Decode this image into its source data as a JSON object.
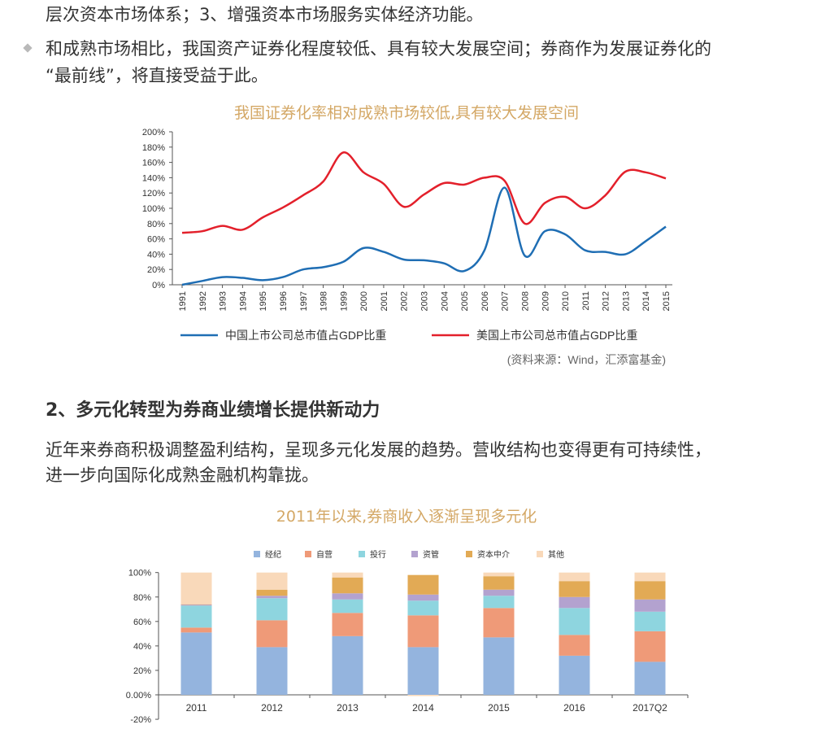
{
  "paragraphs": {
    "p1": "层次资本市场体系；3、增强资本市场服务实体经济功能。",
    "p2_line1": "和成熟市场相比，我国资产证券化程度较低、具有较大发展空间；券商作为发展证券化的",
    "p2_line2": "“最前线”，将直接受益于此。",
    "heading2": "2、多元化转型为券商业绩增长提供新动力",
    "p3_line1": "近年来券商积极调整盈利结构，呈现多元化发展的趋势。营收结构也变得更有可持续性，",
    "p3_line2": "进一步向国际化成熟金融机构靠拢。"
  },
  "chart_data": [
    {
      "type": "line",
      "title": "我国证券化率相对成熟市场较低,具有较大发展空间",
      "source": "(资料来源：Wind，汇添富基金)",
      "ylim": [
        0,
        200
      ],
      "yticks": [
        "0%",
        "20%",
        "40%",
        "60%",
        "80%",
        "100%",
        "120%",
        "140%",
        "160%",
        "180%",
        "200%"
      ],
      "x": [
        1991,
        1992,
        1993,
        1994,
        1995,
        1996,
        1997,
        1998,
        1999,
        2000,
        2001,
        2002,
        2003,
        2004,
        2005,
        2006,
        2007,
        2008,
        2009,
        2010,
        2011,
        2012,
        2013,
        2014,
        2015
      ],
      "x_labels": [
        "1991",
        "1992",
        "1993",
        "1994",
        "1995",
        "1996",
        "1997",
        "1998",
        "1999",
        "2000",
        "2001",
        "2002",
        "2003",
        "2004",
        "2005",
        "2006",
        "2007",
        "2008",
        "2009",
        "2010",
        "2011",
        "2012",
        "2013",
        "2014",
        "2015"
      ],
      "series": [
        {
          "name": "中国上市公司总市值占GDP比重",
          "color": "#1f6eb4",
          "values": [
            0,
            5,
            10,
            9,
            6,
            10,
            20,
            23,
            30,
            48,
            43,
            33,
            32,
            28,
            18,
            45,
            127,
            38,
            70,
            66,
            45,
            43,
            40,
            57,
            76
          ]
        },
        {
          "name": "美国上市公司总市值占GDP比重",
          "color": "#e3202b",
          "values": [
            68,
            70,
            77,
            72,
            88,
            101,
            117,
            135,
            173,
            147,
            132,
            102,
            118,
            133,
            131,
            140,
            136,
            80,
            107,
            115,
            100,
            117,
            148,
            147,
            139
          ]
        }
      ]
    },
    {
      "type": "bar",
      "stacked": true,
      "title": "2011年以来,券商收入逐渐呈现多元化",
      "ylim": [
        -20,
        100
      ],
      "yticks": [
        "-20%",
        "0.00%",
        "20%",
        "40%",
        "60%",
        "80%",
        "100%"
      ],
      "categories": [
        "2011",
        "2012",
        "2013",
        "2014",
        "2015",
        "2016",
        "2017Q2"
      ],
      "legend_position": "top",
      "series": [
        {
          "name": "经纪",
          "color": "#94b4de",
          "values": [
            51,
            39,
            48,
            39,
            47,
            32,
            27
          ]
        },
        {
          "name": "自营",
          "color": "#ef9a78",
          "values": [
            4,
            22,
            19,
            26,
            24,
            17,
            25
          ]
        },
        {
          "name": "投行",
          "color": "#8ed5df",
          "values": [
            18,
            18,
            11,
            12,
            10,
            22,
            16
          ]
        },
        {
          "name": "资管",
          "color": "#b3a2cf",
          "values": [
            1,
            2,
            5,
            5,
            5,
            9,
            10
          ]
        },
        {
          "name": "资本中介",
          "color": "#e2aa55",
          "values": [
            0,
            5,
            13,
            16,
            11,
            13,
            15
          ]
        },
        {
          "name": "其他",
          "color": "#f9d9ba",
          "values": [
            26,
            14,
            4,
            -1,
            3,
            7,
            7
          ]
        }
      ]
    }
  ]
}
